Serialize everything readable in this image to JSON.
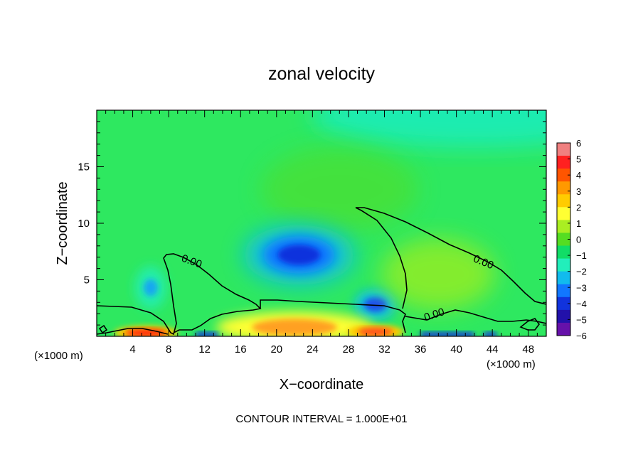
{
  "chart_data": {
    "type": "heatmap",
    "title": "zonal velocity",
    "xlabel": "X−coordinate",
    "ylabel": "Z−coordinate",
    "x_unit_label": "(×1000 m)",
    "xlim": [
      0,
      50
    ],
    "ylim": [
      0,
      20
    ],
    "x_ticks": [
      4,
      8,
      12,
      16,
      20,
      24,
      28,
      32,
      36,
      40,
      44,
      48
    ],
    "x_tick_labels": [
      "4",
      "8",
      "12",
      "16",
      "20",
      "24",
      "28",
      "32",
      "36",
      "40",
      "44",
      "48"
    ],
    "y_ticks": [
      5,
      10,
      15
    ],
    "y_tick_labels": [
      "5",
      "10",
      "15"
    ],
    "contour_label": "0.00",
    "footer": "CONTOUR INTERVAL = 1.000E+01",
    "colorbar": {
      "levels": [
        6,
        5,
        4,
        3,
        2,
        1,
        0,
        -1,
        -2,
        -3,
        -4,
        -5,
        -6
      ],
      "labels": [
        "6",
        "5",
        "4",
        "3",
        "2",
        "1",
        "0",
        "−1",
        "−2",
        "−3",
        "−4",
        "−5",
        "−6"
      ],
      "colors": [
        "#f08080",
        "#ff2020",
        "#ff5500",
        "#ff9900",
        "#ffcc00",
        "#ffff33",
        "#aaee22",
        "#55dd22",
        "#11dd66",
        "#22eebb",
        "#11bbee",
        "#1177ff",
        "#1133dd",
        "#2211aa",
        "#6611aa"
      ]
    },
    "field_features": [
      {
        "kind": "background",
        "value": -0.5,
        "color": "#2ee860"
      },
      {
        "kind": "upper-right negative band",
        "x": [
          28,
          50
        ],
        "z": [
          15,
          20
        ],
        "value": -1.5,
        "color": "#1eecb0"
      },
      {
        "kind": "min",
        "x": 22.5,
        "z": 7.2,
        "value": -4.5,
        "color": "#1133dd"
      },
      {
        "kind": "min",
        "x": 31,
        "z": 2.8,
        "value": -4,
        "color": "#1a50ee"
      },
      {
        "kind": "min",
        "x": 6,
        "z": 4.3,
        "value": -2.5,
        "color": "#16a8f0"
      },
      {
        "kind": "max",
        "x": 22,
        "z": 0.8,
        "value": 3,
        "color": "#ffa020"
      },
      {
        "kind": "max",
        "x": 5.5,
        "z": 0.3,
        "value": 5,
        "color": "#ff2a10"
      },
      {
        "kind": "max",
        "x": 31,
        "z": 0.4,
        "value": 4,
        "color": "#ff5020"
      },
      {
        "kind": "max",
        "x": 38,
        "z": 5.5,
        "value": 1,
        "color": "#99ee22"
      }
    ]
  }
}
